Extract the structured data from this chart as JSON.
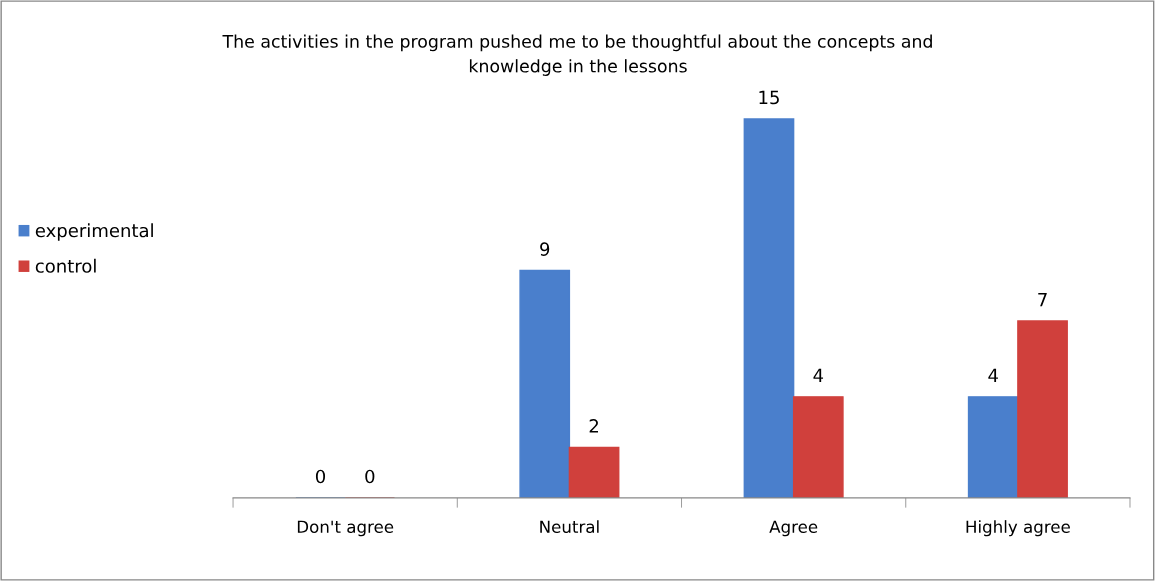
{
  "chart_data": {
    "type": "bar",
    "title": "The activities in the program pushed me to be thoughtful about the concepts and\nknowledge in the lessons",
    "categories": [
      "Don't agree",
      "Neutral",
      "Agree",
      "Highly agree"
    ],
    "series": [
      {
        "name": "experimental",
        "color": "#4a7fcc",
        "values": [
          0,
          9,
          15,
          4
        ]
      },
      {
        "name": "control",
        "color": "#d0403c",
        "values": [
          0,
          2,
          4,
          7
        ]
      }
    ],
    "data_labels": true,
    "legend": "left",
    "grid": false
  }
}
